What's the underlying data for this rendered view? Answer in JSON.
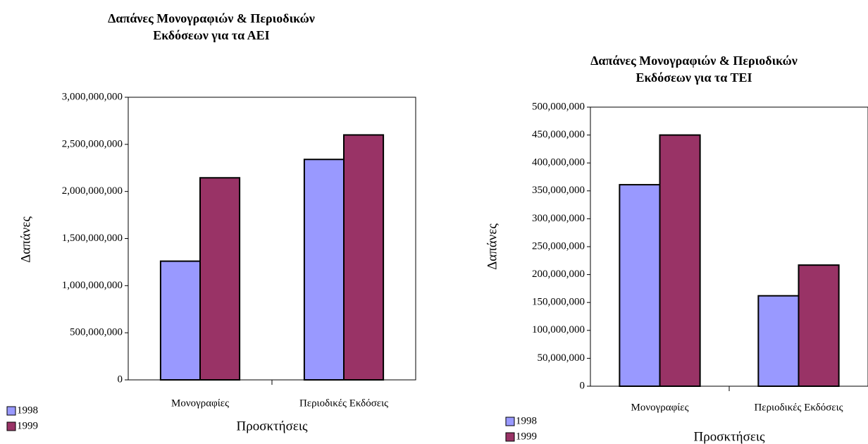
{
  "chart_data": [
    {
      "type": "bar",
      "title": [
        "Δαπάνες Μονογραφιών & Περιοδικών",
        "Εκδόσεων για τα ΑΕΙ"
      ],
      "x_label": "Προσκτήσεις",
      "y_label": "Δαπάνες",
      "categories": [
        "Μονογραφίες",
        "Περιοδικές Εκδόσεις"
      ],
      "series": [
        {
          "name": "1998",
          "color": "#9999ff",
          "values": [
            1260000000,
            2340000000
          ]
        },
        {
          "name": "1999",
          "color": "#993366",
          "values": [
            2145000000,
            2600000000
          ]
        }
      ],
      "ylim": [
        0,
        3000000000
      ],
      "yticks": [
        0,
        {
          "value": 500000000,
          "label": "500,000,000"
        },
        {
          "value": 1000000000,
          "label": "1,000,000,000"
        },
        {
          "value": 1500000000,
          "label": "1,500,000,000"
        },
        {
          "value": 2000000000,
          "label": "2,000,000,000"
        },
        {
          "value": 2500000000,
          "label": "2,500,000,000"
        },
        {
          "value": 3000000000,
          "label": "3,000,000,000"
        }
      ],
      "legend": "bottom-left"
    },
    {
      "type": "bar",
      "title": [
        "Δαπάνες Μονογραφιών & Περιοδικών",
        "Εκδόσεων για τα ΤΕΙ"
      ],
      "x_label": "Προσκτήσεις",
      "y_label": "Δαπάνες",
      "categories": [
        "Μονογραφίες",
        "Περιοδικές Εκδόσεις"
      ],
      "series": [
        {
          "name": "1998",
          "color": "#9999ff",
          "values": [
            361000000,
            162000000
          ]
        },
        {
          "name": "1999",
          "color": "#993366",
          "values": [
            450000000,
            217000000
          ]
        }
      ],
      "ylim": [
        0,
        500000000
      ],
      "yticks": [
        0,
        {
          "value": 50000000,
          "label": "50,000,000"
        },
        {
          "value": 100000000,
          "label": "100,000,000"
        },
        {
          "value": 150000000,
          "label": "150,000,000"
        },
        {
          "value": 200000000,
          "label": "200,000,000"
        },
        {
          "value": 250000000,
          "label": "250,000,000"
        },
        {
          "value": 300000000,
          "label": "300,000,000"
        },
        {
          "value": 350000000,
          "label": "350,000,000"
        },
        {
          "value": 400000000,
          "label": "400,000,000"
        },
        {
          "value": 450000000,
          "label": "450,000,000"
        },
        {
          "value": 500000000,
          "label": "500,000,000"
        }
      ],
      "legend": "bottom-left"
    }
  ]
}
